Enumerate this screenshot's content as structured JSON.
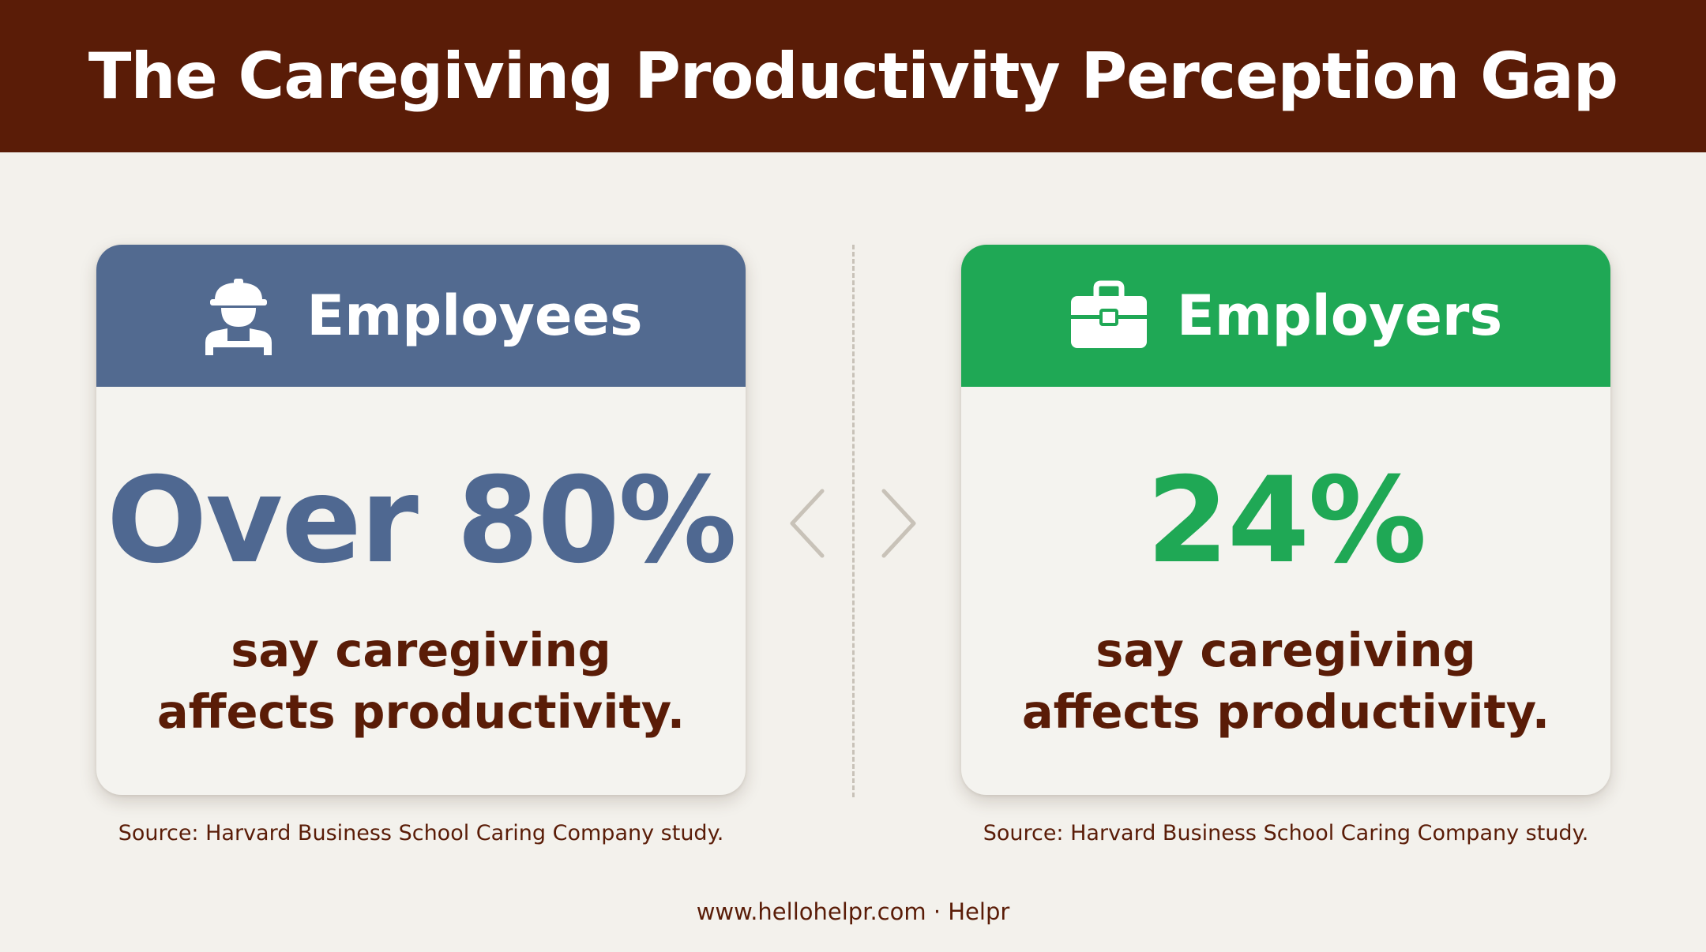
{
  "header": {
    "title": "The Caregiving Productivity Perception Gap"
  },
  "colors": {
    "header_bg": "#5a1c07",
    "employees_accent": "#526a90",
    "employers_accent": "#1fa855",
    "body_text": "#5a1c07",
    "background": "#f3f1ec"
  },
  "cards": [
    {
      "icon": "worker-hardhat-icon",
      "label": "Employees",
      "stat": "Over 80%",
      "desc_line1": "say caregiving",
      "desc_line2": "affects productivity.",
      "source": "Source: Harvard Business School Caring Company study."
    },
    {
      "icon": "briefcase-icon",
      "label": "Employers",
      "stat": "24%",
      "desc_line1": "say caregiving",
      "desc_line2": "affects productivity.",
      "source": "Source: Harvard Business School Caring Company study."
    }
  ],
  "divider": {
    "left_icon": "chevron-left-icon",
    "right_icon": "chevron-right-icon"
  },
  "footer": {
    "text": "www.hellohelpr.com · Helpr"
  }
}
